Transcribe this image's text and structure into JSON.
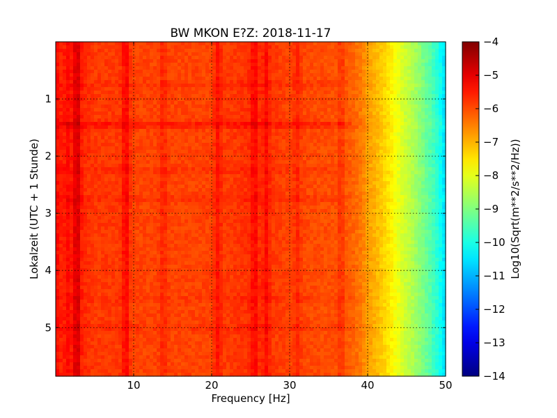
{
  "chart_data": {
    "type": "heatmap",
    "title": "BW MKON E?Z: 2018-11-17",
    "xlabel": "Frequency [Hz]",
    "ylabel": "Lokalzeit (UTC + 1 Stunde)",
    "xlim": [
      0,
      50
    ],
    "ylim": [
      5.85,
      0
    ],
    "x_ticks": [
      10,
      20,
      30,
      40,
      50
    ],
    "y_ticks": [
      1,
      2,
      3,
      4,
      5
    ],
    "grid": true,
    "colormap": "jet",
    "colorbar": {
      "label": "Log10(Sqrt(m**2/s**2/Hz))",
      "range": [
        -14,
        -4
      ],
      "ticks": [
        -4,
        -5,
        -6,
        -7,
        -8,
        -9,
        -10,
        -11,
        -12,
        -13,
        -14
      ]
    },
    "spectral_profile": {
      "frequency_hz": [
        0,
        1,
        3,
        5,
        8,
        10,
        15,
        20,
        25,
        30,
        35,
        38,
        39,
        40,
        41,
        42,
        43,
        44,
        45,
        46,
        47,
        48,
        49,
        50
      ],
      "log10_amplitude": [
        -5.3,
        -5.7,
        -5.6,
        -5.8,
        -5.8,
        -5.9,
        -5.9,
        -5.9,
        -5.7,
        -5.9,
        -6.0,
        -6.2,
        -6.4,
        -6.8,
        -7.0,
        -7.3,
        -7.6,
        -8.0,
        -8.3,
        -8.6,
        -9.0,
        -9.4,
        -9.9,
        -10.6
      ]
    },
    "vertical_lines_hz": [
      {
        "f": 1.5,
        "strength": 0.35
      },
      {
        "f": 2.7,
        "strength": 0.8
      },
      {
        "f": 9.0,
        "strength": 0.6
      },
      {
        "f": 13.8,
        "strength": 0.3
      },
      {
        "f": 20.8,
        "strength": 0.45
      },
      {
        "f": 25.5,
        "strength": 0.45
      },
      {
        "f": 27.0,
        "strength": 0.45
      },
      {
        "f": 31.0,
        "strength": 0.3
      },
      {
        "f": 36.6,
        "strength": 0.35
      }
    ],
    "bright_time_bands_h": [
      {
        "t": 0.75,
        "strength": 0.3
      },
      {
        "t": 1.45,
        "strength": 0.8
      },
      {
        "t": 2.25,
        "strength": 0.3
      },
      {
        "t": 2.75,
        "strength": 0.35
      },
      {
        "t": 4.5,
        "strength": 0.25
      },
      {
        "t": 5.0,
        "strength": 0.3
      }
    ]
  }
}
